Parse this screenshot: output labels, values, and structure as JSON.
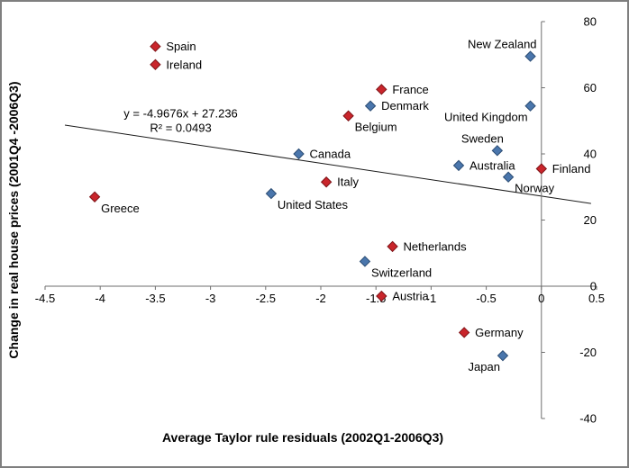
{
  "chart_data": {
    "type": "scatter",
    "title": "",
    "xlabel": "Average Taylor rule residuals (2002Q1-2006Q3)",
    "ylabel": "Change in real house prices (2001Q4 -2006Q3)",
    "xlim": [
      -4.5,
      0.5
    ],
    "ylim": [
      -40,
      80
    ],
    "x_ticks": [
      -4.5,
      -4,
      -3.5,
      -3,
      -2.5,
      -2,
      -1.5,
      -1,
      -0.5,
      0,
      0.5
    ],
    "x_tick_labels": [
      "-4.5",
      "-4",
      "-3.5",
      "-3",
      "-2.5",
      "-2",
      "-1.5",
      "-1",
      "-0.5",
      "0",
      "0.5"
    ],
    "y_ticks": [
      80,
      60,
      40,
      20,
      0,
      -20,
      -40
    ],
    "y_tick_labels": [
      "80",
      "60",
      "40",
      "20",
      "0",
      "-20",
      "-40"
    ],
    "grid": false,
    "legend": false,
    "axes": {
      "x_axis_at_y": 0,
      "y_axis_at_x": 0,
      "y_tick_labels_position": "right"
    },
    "points": [
      {
        "label": "Spain",
        "x": -3.5,
        "y": 72.5,
        "series": "red",
        "label_pos": "right"
      },
      {
        "label": "Ireland",
        "x": -3.5,
        "y": 67,
        "series": "red",
        "label_pos": "right"
      },
      {
        "label": "New Zealand",
        "x": -0.1,
        "y": 69.5,
        "series": "blue",
        "label_pos": "above-left"
      },
      {
        "label": "France",
        "x": -1.45,
        "y": 59.5,
        "series": "red",
        "label_pos": "right"
      },
      {
        "label": "Denmark",
        "x": -1.55,
        "y": 54.5,
        "series": "blue",
        "label_pos": "right"
      },
      {
        "label": "United Kingdom",
        "x": -0.1,
        "y": 54.5,
        "series": "blue",
        "label_pos": "below-left"
      },
      {
        "label": "Belgium",
        "x": -1.75,
        "y": 51.5,
        "series": "red",
        "label_pos": "below-right"
      },
      {
        "label": "Sweden",
        "x": -0.4,
        "y": 41,
        "series": "blue",
        "label_pos": "above-left"
      },
      {
        "label": "Canada",
        "x": -2.2,
        "y": 40,
        "series": "blue",
        "label_pos": "right"
      },
      {
        "label": "Australia",
        "x": -0.75,
        "y": 36.5,
        "series": "blue",
        "label_pos": "right"
      },
      {
        "label": "Finland",
        "x": 0,
        "y": 35.5,
        "series": "red",
        "label_pos": "right"
      },
      {
        "label": "Norway",
        "x": -0.3,
        "y": 33,
        "series": "blue",
        "label_pos": "below-right"
      },
      {
        "label": "Italy",
        "x": -1.95,
        "y": 31.5,
        "series": "red",
        "label_pos": "right"
      },
      {
        "label": "United States",
        "x": -2.45,
        "y": 28,
        "series": "blue",
        "label_pos": "below-right"
      },
      {
        "label": "Greece",
        "x": -4.05,
        "y": 27,
        "series": "red",
        "label_pos": "below-right"
      },
      {
        "label": "Netherlands",
        "x": -1.35,
        "y": 12,
        "series": "red",
        "label_pos": "right"
      },
      {
        "label": "Switzerland",
        "x": -1.6,
        "y": 7.5,
        "series": "blue",
        "label_pos": "below-right"
      },
      {
        "label": "Austria",
        "x": -1.45,
        "y": -3,
        "series": "red",
        "label_pos": "right"
      },
      {
        "label": "Germany",
        "x": -0.7,
        "y": -14,
        "series": "red",
        "label_pos": "right"
      },
      {
        "label": "Japan",
        "x": -0.35,
        "y": -21,
        "series": "blue",
        "label_pos": "below-left"
      }
    ],
    "trendline": {
      "slope": -4.9676,
      "intercept": 27.236,
      "x_start": -4.32,
      "x_end": 0.45,
      "equation_label": "y = -4.9676x + 27.236",
      "r_squared_label": "R² = 0.0493",
      "annotation_x": -3.27,
      "annotation_y": 51
    }
  },
  "colors": {
    "red_fill": "#C9252B",
    "red_stroke": "#7E1418",
    "blue_fill": "#4A76AC",
    "blue_stroke": "#2C4D74",
    "axis": "#6E6E6E",
    "text": "#000000",
    "trendline": "#1a1a1a",
    "frame_border": "#7F7F7F"
  }
}
